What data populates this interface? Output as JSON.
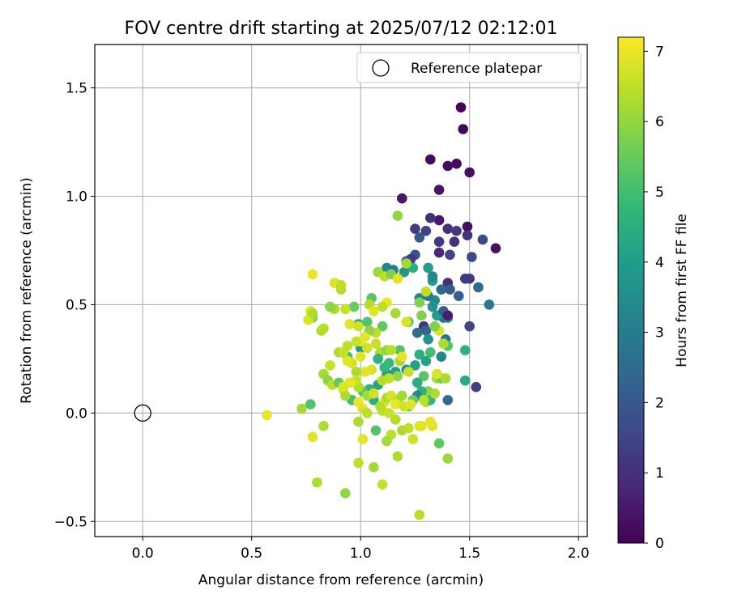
{
  "chart_data": {
    "type": "scatter",
    "title": "FOV centre drift starting at 2025/07/12 02:12:01",
    "xlabel": "Angular distance from reference (arcmin)",
    "ylabel": "Rotation from reference (arcmin)",
    "xlim": [
      -0.22,
      2.04
    ],
    "ylim": [
      -0.57,
      1.7
    ],
    "xticks": [
      "0.0",
      "0.5",
      "1.0",
      "1.5",
      "2.0"
    ],
    "yticks": [
      "−0.5",
      "0.0",
      "0.5",
      "1.0",
      "1.5"
    ],
    "grid": true,
    "legend": {
      "placement": "top-right",
      "entries": [
        "Reference platepar"
      ]
    },
    "reference_point": {
      "x": 0.0,
      "y": 0.0
    },
    "colorbar": {
      "label": "Hours from first FF file",
      "ticks": [
        "0",
        "1",
        "2",
        "3",
        "4",
        "5",
        "6",
        "7"
      ],
      "range": [
        0,
        7.2
      ],
      "colormap": [
        "#440154",
        "#482878",
        "#3e4989",
        "#31688e",
        "#26828e",
        "#1f9e89",
        "#35b779",
        "#6ece58",
        "#b5de2b",
        "#fde725"
      ]
    },
    "points": [
      [
        1.46,
        1.41,
        0.1
      ],
      [
        1.47,
        1.31,
        0.15
      ],
      [
        1.32,
        1.17,
        0.2
      ],
      [
        1.44,
        1.15,
        0.2
      ],
      [
        1.4,
        1.14,
        0.25
      ],
      [
        1.5,
        1.11,
        0.3
      ],
      [
        1.36,
        1.03,
        0.4
      ],
      [
        1.19,
        0.99,
        0.5
      ],
      [
        1.36,
        0.89,
        0.5
      ],
      [
        1.49,
        0.86,
        0.3
      ],
      [
        1.62,
        0.76,
        0.3
      ],
      [
        1.32,
        0.9,
        1.0
      ],
      [
        1.4,
        0.85,
        1.0
      ],
      [
        1.44,
        0.84,
        1.2
      ],
      [
        1.49,
        0.82,
        1.1
      ],
      [
        1.56,
        0.8,
        1.6
      ],
      [
        1.43,
        0.79,
        1.1
      ],
      [
        1.36,
        0.79,
        1.2
      ],
      [
        1.25,
        0.85,
        1.3
      ],
      [
        1.3,
        0.84,
        1.4
      ],
      [
        1.27,
        0.81,
        2.0
      ],
      [
        1.51,
        0.72,
        1.6
      ],
      [
        1.41,
        0.73,
        1.5
      ],
      [
        1.36,
        0.74,
        0.8
      ],
      [
        1.25,
        0.73,
        1.8
      ],
      [
        1.23,
        0.71,
        1.2
      ],
      [
        1.21,
        0.7,
        1.7
      ],
      [
        1.24,
        0.67,
        4.5
      ],
      [
        1.12,
        0.67,
        3.3
      ],
      [
        1.15,
        0.66,
        3.1
      ],
      [
        1.31,
        0.67,
        4.0
      ],
      [
        1.2,
        0.65,
        3.8
      ],
      [
        1.33,
        0.61,
        4.0
      ],
      [
        1.33,
        0.63,
        3.3
      ],
      [
        1.4,
        0.6,
        1.0
      ],
      [
        1.37,
        0.57,
        2.4
      ],
      [
        1.41,
        0.57,
        2.1
      ],
      [
        1.48,
        0.62,
        1.3
      ],
      [
        1.5,
        0.62,
        1.2
      ],
      [
        1.54,
        0.58,
        2.5
      ],
      [
        1.59,
        0.5,
        2.9
      ],
      [
        1.45,
        0.54,
        2.2
      ],
      [
        1.34,
        0.52,
        3.5
      ],
      [
        1.31,
        0.54,
        2.9
      ],
      [
        1.27,
        0.53,
        3.2
      ],
      [
        1.33,
        0.49,
        3.7
      ],
      [
        1.38,
        0.44,
        2.6
      ],
      [
        1.35,
        0.45,
        4.0
      ],
      [
        1.4,
        0.44,
        3.3
      ],
      [
        1.38,
        0.47,
        2.2
      ],
      [
        1.4,
        0.45,
        0.6
      ],
      [
        1.29,
        0.4,
        1.1
      ],
      [
        1.3,
        0.38,
        2.3
      ],
      [
        1.26,
        0.37,
        2.6
      ],
      [
        1.31,
        0.34,
        3.7
      ],
      [
        1.39,
        0.34,
        2.9
      ],
      [
        1.4,
        0.31,
        5.2
      ],
      [
        1.36,
        0.38,
        6.8
      ],
      [
        1.34,
        0.4,
        5.8
      ],
      [
        1.22,
        0.42,
        5.3
      ],
      [
        1.28,
        0.45,
        5.8
      ],
      [
        1.27,
        0.51,
        5.8
      ],
      [
        1.16,
        0.46,
        6.2
      ],
      [
        1.5,
        0.4,
        1.5
      ],
      [
        1.48,
        0.29,
        4.6
      ],
      [
        1.37,
        0.26,
        3.3
      ],
      [
        1.32,
        0.28,
        5.0
      ],
      [
        1.27,
        0.27,
        4.5
      ],
      [
        1.3,
        0.24,
        4.2
      ],
      [
        1.18,
        0.29,
        5.2
      ],
      [
        1.13,
        0.23,
        4.8
      ],
      [
        1.16,
        0.19,
        4.0
      ],
      [
        1.21,
        0.2,
        3.6
      ],
      [
        1.25,
        0.22,
        4.1
      ],
      [
        1.29,
        0.17,
        5.3
      ],
      [
        1.26,
        0.14,
        4.5
      ],
      [
        1.31,
        0.1,
        6.0
      ],
      [
        1.28,
        0.1,
        4.6
      ],
      [
        1.26,
        0.08,
        3.3
      ],
      [
        1.24,
        0.06,
        5.5
      ],
      [
        1.3,
        0.05,
        6.5
      ],
      [
        1.32,
        0.06,
        4.8
      ],
      [
        1.35,
        0.16,
        6.2
      ],
      [
        1.37,
        0.16,
        5.5
      ],
      [
        1.39,
        0.16,
        6.3
      ],
      [
        1.48,
        0.15,
        4.4
      ],
      [
        1.53,
        0.12,
        1.4
      ],
      [
        1.4,
        0.06,
        2.5
      ],
      [
        1.12,
        0.18,
        4.0
      ],
      [
        1.08,
        0.13,
        4.2
      ],
      [
        1.04,
        0.11,
        4.6
      ],
      [
        1.06,
        0.06,
        4.5
      ],
      [
        1.01,
        0.1,
        5.3
      ],
      [
        0.96,
        0.06,
        5.0
      ],
      [
        0.99,
        0.41,
        4.3
      ],
      [
        1.03,
        0.42,
        5.2
      ],
      [
        1.1,
        0.4,
        5.4
      ],
      [
        1.05,
        0.53,
        5.3
      ],
      [
        1.0,
        0.3,
        4.0
      ],
      [
        0.94,
        0.26,
        5.1
      ],
      [
        0.9,
        0.28,
        6.3
      ],
      [
        0.86,
        0.22,
        6.6
      ],
      [
        0.83,
        0.18,
        6.2
      ],
      [
        0.85,
        0.15,
        5.9
      ],
      [
        0.87,
        0.13,
        6.5
      ],
      [
        0.9,
        0.14,
        5.4
      ],
      [
        0.92,
        0.11,
        6.6
      ],
      [
        0.93,
        0.08,
        6.3
      ],
      [
        0.99,
        0.12,
        6.4
      ],
      [
        1.03,
        0.08,
        6.2
      ],
      [
        1.06,
        0.09,
        6.7
      ],
      [
        1.11,
        0.05,
        6.9
      ],
      [
        1.12,
        0.07,
        6.3
      ],
      [
        1.1,
        0.01,
        6.5
      ],
      [
        1.14,
        0.08,
        6.8
      ],
      [
        1.17,
        0.06,
        6.4
      ],
      [
        1.19,
        0.08,
        6.2
      ],
      [
        1.22,
        0.03,
        5.6
      ],
      [
        1.16,
        -0.03,
        6.4
      ],
      [
        1.19,
        -0.08,
        6.3
      ],
      [
        1.22,
        -0.07,
        6.5
      ],
      [
        1.24,
        -0.12,
        6.7
      ],
      [
        1.27,
        -0.06,
        6.8
      ],
      [
        1.28,
        -0.06,
        6.9
      ],
      [
        1.32,
        -0.04,
        7.0
      ],
      [
        1.33,
        -0.06,
        6.9
      ],
      [
        1.36,
        -0.14,
        5.4
      ],
      [
        1.4,
        -0.21,
        6.1
      ],
      [
        1.17,
        -0.2,
        6.3
      ],
      [
        1.14,
        -0.1,
        6.5
      ],
      [
        1.12,
        -0.13,
        6.2
      ],
      [
        1.07,
        -0.08,
        5.2
      ],
      [
        1.01,
        -0.12,
        6.9
      ],
      [
        0.99,
        -0.04,
        6.3
      ],
      [
        0.99,
        -0.23,
        6.5
      ],
      [
        1.06,
        -0.25,
        6.2
      ],
      [
        1.1,
        -0.33,
        6.6
      ],
      [
        0.93,
        -0.37,
        6.0
      ],
      [
        0.8,
        -0.32,
        6.3
      ],
      [
        0.78,
        -0.11,
        6.9
      ],
      [
        0.83,
        -0.06,
        6.3
      ],
      [
        0.73,
        0.02,
        6.2
      ],
      [
        0.77,
        0.04,
        5.2
      ],
      [
        0.57,
        -0.01,
        7.0
      ],
      [
        1.27,
        -0.47,
        6.4
      ],
      [
        0.97,
        0.49,
        5.5
      ],
      [
        0.93,
        0.48,
        6.6
      ],
      [
        0.88,
        0.48,
        6.3
      ],
      [
        0.86,
        0.49,
        5.9
      ],
      [
        0.82,
        0.38,
        6.3
      ],
      [
        0.83,
        0.39,
        6.4
      ],
      [
        0.78,
        0.44,
        5.9
      ],
      [
        0.76,
        0.43,
        6.8
      ],
      [
        0.77,
        0.47,
        6.9
      ],
      [
        0.78,
        0.46,
        6.3
      ],
      [
        0.88,
        0.6,
        6.8
      ],
      [
        0.91,
        0.57,
        6.4
      ],
      [
        0.91,
        0.59,
        6.5
      ],
      [
        0.78,
        0.64,
        7.0
      ],
      [
        0.95,
        0.41,
        6.9
      ],
      [
        0.99,
        0.4,
        6.7
      ],
      [
        1.04,
        0.5,
        6.4
      ],
      [
        1.06,
        0.47,
        6.9
      ],
      [
        1.12,
        0.51,
        7.0
      ],
      [
        1.1,
        0.49,
        6.5
      ],
      [
        1.07,
        0.37,
        6.5
      ],
      [
        1.04,
        0.38,
        6.0
      ],
      [
        1.02,
        0.35,
        6.9
      ],
      [
        1.0,
        0.33,
        7.0
      ],
      [
        1.03,
        0.3,
        6.7
      ],
      [
        1.07,
        0.32,
        6.6
      ],
      [
        1.09,
        0.28,
        6.3
      ],
      [
        1.12,
        0.29,
        6.0
      ],
      [
        1.14,
        0.29,
        6.4
      ],
      [
        1.18,
        0.24,
        6.2
      ],
      [
        1.19,
        0.26,
        6.9
      ],
      [
        1.22,
        0.19,
        6.6
      ],
      [
        1.17,
        0.17,
        6.0
      ],
      [
        1.13,
        0.16,
        6.5
      ],
      [
        1.1,
        0.15,
        6.4
      ],
      [
        1.05,
        0.2,
        6.8
      ],
      [
        1.02,
        0.19,
        6.9
      ],
      [
        0.98,
        0.19,
        6.3
      ],
      [
        0.96,
        0.23,
        6.7
      ],
      [
        0.94,
        0.24,
        6.9
      ],
      [
        0.92,
        0.28,
        6.6
      ],
      [
        0.94,
        0.31,
        6.5
      ],
      [
        0.98,
        0.33,
        6.6
      ],
      [
        1.0,
        0.26,
        6.9
      ],
      [
        0.98,
        0.15,
        6.6
      ],
      [
        0.95,
        0.14,
        7.0
      ],
      [
        0.92,
        0.12,
        6.8
      ],
      [
        0.99,
        0.05,
        7.0
      ],
      [
        1.01,
        0.02,
        6.8
      ],
      [
        1.03,
        0.0,
        6.5
      ],
      [
        1.09,
        0.03,
        6.4
      ],
      [
        1.13,
        0.0,
        6.6
      ],
      [
        1.16,
        0.04,
        7.0
      ],
      [
        1.2,
        0.03,
        6.7
      ],
      [
        1.23,
        0.04,
        6.9
      ],
      [
        1.29,
        0.06,
        6.5
      ],
      [
        1.34,
        0.09,
        6.3
      ],
      [
        1.08,
        0.65,
        6.1
      ],
      [
        1.11,
        0.63,
        6.5
      ],
      [
        1.14,
        0.64,
        5.8
      ],
      [
        1.17,
        0.62,
        6.9
      ],
      [
        1.21,
        0.69,
        6.2
      ],
      [
        1.21,
        0.42,
        6.8
      ],
      [
        1.17,
        0.91,
        6.0
      ],
      [
        1.3,
        0.56,
        6.5
      ],
      [
        1.35,
        0.18,
        6.8
      ],
      [
        1.38,
        0.32,
        6.3
      ],
      [
        1.08,
        0.25,
        4.6
      ],
      [
        1.11,
        0.21,
        4.8
      ]
    ]
  }
}
